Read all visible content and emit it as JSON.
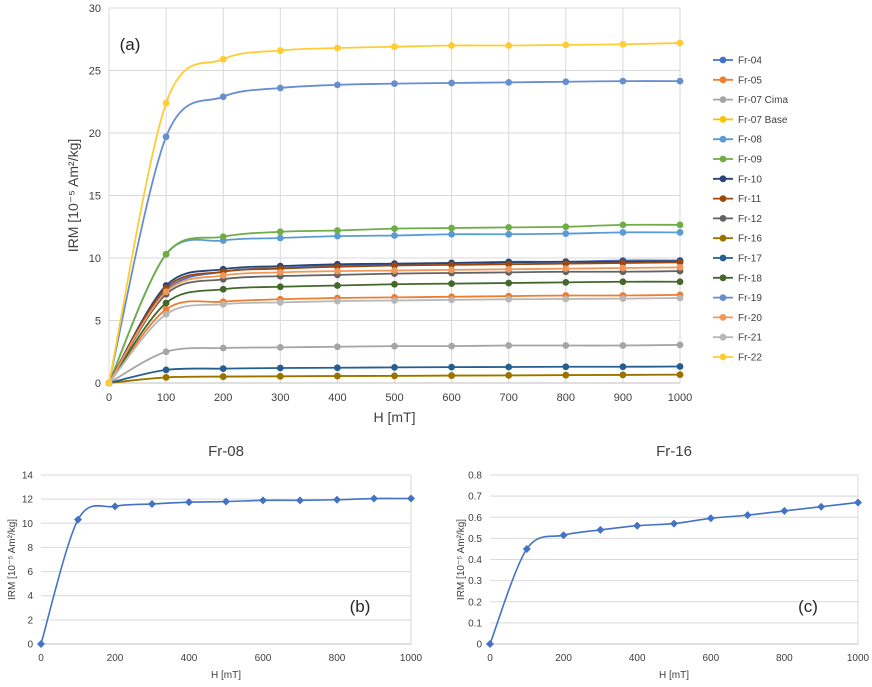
{
  "chart_data": [
    {
      "type": "line",
      "panel_label": "(a)",
      "xlabel": "H [mT]",
      "ylabel": "IRM [10⁻⁵ Am²/kg]",
      "xlim": [
        0,
        1000
      ],
      "ylim": [
        0,
        30
      ],
      "xticks": [
        0,
        100,
        200,
        300,
        400,
        500,
        600,
        700,
        800,
        900,
        1000
      ],
      "yticks": [
        0,
        5,
        10,
        15,
        20,
        25,
        30
      ],
      "x": [
        0,
        100,
        200,
        300,
        400,
        500,
        600,
        700,
        800,
        900,
        1000
      ],
      "grid": true,
      "legend_position": "right",
      "series": [
        {
          "name": "Fr-04",
          "color": "#4472C4",
          "values": [
            0,
            7.4,
            8.9,
            9.2,
            9.4,
            9.5,
            9.6,
            9.7,
            9.7,
            9.8,
            9.8
          ]
        },
        {
          "name": "Fr-05",
          "color": "#ED7D31",
          "values": [
            0,
            5.9,
            6.5,
            6.7,
            6.8,
            6.85,
            6.9,
            6.95,
            7.0,
            7.0,
            7.05
          ]
        },
        {
          "name": "Fr-07 Cima",
          "color": "#A5A5A5",
          "values": [
            0,
            2.5,
            2.8,
            2.85,
            2.9,
            2.95,
            2.95,
            3.0,
            3.0,
            3.0,
            3.05
          ]
        },
        {
          "name": "Fr-07 Base",
          "color": "#FFC000",
          "values": [
            0,
            0.45,
            0.5,
            0.52,
            0.55,
            0.57,
            0.59,
            0.61,
            0.63,
            0.64,
            0.66
          ]
        },
        {
          "name": "Fr-08",
          "color": "#5B9BD5",
          "values": [
            0,
            10.3,
            11.4,
            11.6,
            11.75,
            11.8,
            11.9,
            11.9,
            11.95,
            12.05,
            12.05
          ]
        },
        {
          "name": "Fr-09",
          "color": "#70AD47",
          "values": [
            0,
            10.3,
            11.7,
            12.1,
            12.2,
            12.35,
            12.4,
            12.45,
            12.5,
            12.65,
            12.65
          ]
        },
        {
          "name": "Fr-10",
          "color": "#264478",
          "values": [
            0,
            7.8,
            9.1,
            9.35,
            9.5,
            9.55,
            9.6,
            9.65,
            9.7,
            9.7,
            9.75
          ]
        },
        {
          "name": "Fr-11",
          "color": "#9E480E",
          "values": [
            0,
            7.6,
            8.9,
            9.15,
            9.3,
            9.4,
            9.45,
            9.5,
            9.55,
            9.6,
            9.65
          ]
        },
        {
          "name": "Fr-12",
          "color": "#636363",
          "values": [
            0,
            7.1,
            8.3,
            8.55,
            8.65,
            8.75,
            8.8,
            8.85,
            8.9,
            8.9,
            8.95
          ]
        },
        {
          "name": "Fr-16",
          "color": "#997300",
          "values": [
            0,
            0.45,
            0.515,
            0.54,
            0.56,
            0.57,
            0.595,
            0.61,
            0.63,
            0.65,
            0.67
          ]
        },
        {
          "name": "Fr-17",
          "color": "#255E91",
          "values": [
            0,
            1.05,
            1.15,
            1.2,
            1.22,
            1.25,
            1.27,
            1.28,
            1.3,
            1.3,
            1.32
          ]
        },
        {
          "name": "Fr-18",
          "color": "#43682B",
          "values": [
            0,
            6.4,
            7.5,
            7.7,
            7.8,
            7.9,
            7.95,
            8.0,
            8.05,
            8.1,
            8.1
          ]
        },
        {
          "name": "Fr-19",
          "color": "#698ED0",
          "values": [
            0,
            19.7,
            22.9,
            23.6,
            23.85,
            23.95,
            24.0,
            24.05,
            24.1,
            24.15,
            24.15
          ]
        },
        {
          "name": "Fr-20",
          "color": "#F1975A",
          "values": [
            0,
            7.3,
            8.6,
            8.85,
            8.95,
            9.0,
            9.05,
            9.1,
            9.15,
            9.2,
            9.25
          ]
        },
        {
          "name": "Fr-21",
          "color": "#B7B7B7",
          "values": [
            0,
            5.5,
            6.3,
            6.45,
            6.55,
            6.6,
            6.65,
            6.7,
            6.72,
            6.75,
            6.8
          ]
        },
        {
          "name": "Fr-22",
          "color": "#FFCD33",
          "values": [
            0,
            22.4,
            25.9,
            26.6,
            26.8,
            26.9,
            27.0,
            27.0,
            27.05,
            27.1,
            27.2
          ]
        }
      ]
    },
    {
      "type": "line",
      "title": "Fr-08",
      "panel_label": "(b)",
      "xlabel": "H [mT]",
      "ylabel": "IRM [10⁻⁵ Am²/kg]",
      "xlim": [
        0,
        1000
      ],
      "ylim": [
        0,
        14
      ],
      "xticks": [
        0,
        200,
        400,
        600,
        800,
        1000
      ],
      "yticks": [
        0,
        2,
        4,
        6,
        8,
        10,
        12,
        14
      ],
      "x": [
        0,
        100,
        200,
        300,
        400,
        500,
        600,
        700,
        800,
        900,
        1000
      ],
      "values": [
        0,
        10.3,
        11.4,
        11.6,
        11.75,
        11.8,
        11.9,
        11.9,
        11.95,
        12.05,
        12.05
      ],
      "color": "#4472C4",
      "marker": "diamond",
      "grid": true
    },
    {
      "type": "line",
      "title": "Fr-16",
      "panel_label": "(c)",
      "xlabel": "H [mT]",
      "ylabel": "IRM [10⁻⁵ Am²/kg]",
      "xlim": [
        0,
        1000
      ],
      "ylim": [
        0,
        0.8
      ],
      "xticks": [
        0,
        200,
        400,
        600,
        800,
        1000
      ],
      "yticks": [
        0,
        0.1,
        0.2,
        0.3,
        0.4,
        0.5,
        0.6,
        0.7,
        0.8
      ],
      "x": [
        0,
        100,
        200,
        300,
        400,
        500,
        600,
        700,
        800,
        900,
        1000
      ],
      "values": [
        0,
        0.45,
        0.515,
        0.54,
        0.56,
        0.57,
        0.595,
        0.61,
        0.63,
        0.65,
        0.67
      ],
      "color": "#4472C4",
      "marker": "diamond",
      "grid": true
    }
  ]
}
